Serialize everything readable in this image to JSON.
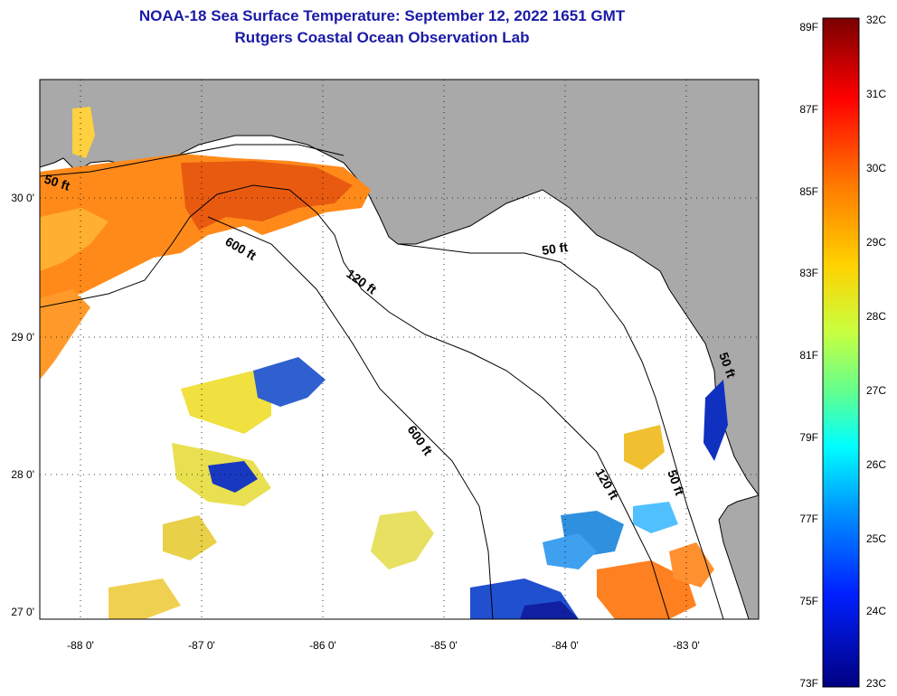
{
  "title": {
    "line1": "NOAA-18 Sea Surface Temperature:  September 12, 2022 1651 GMT",
    "line2": "Rutgers Coastal Ocean Observation Lab"
  },
  "map": {
    "lon_range": [
      -88.33,
      -82.5
    ],
    "lat_range": [
      26.97,
      30.85
    ],
    "lon_ticks": [
      "-88 0'",
      "-87 0'",
      "-86 0'",
      "-85 0'",
      "-84 0'",
      "-83 0'"
    ],
    "lat_ticks": [
      "30 0'",
      "29 0'",
      "28 0'",
      "27 0'"
    ],
    "contour_labels": [
      "50 ft",
      "600 ft",
      "120 ft",
      "50 ft",
      "600 ft",
      "120 ft",
      "50 ft",
      "50 ft"
    ],
    "colors": {
      "land": "#a9a9a9",
      "water_no_data": "#ffffff",
      "coastline": "#000000"
    }
  },
  "colorbar": {
    "fahrenheit_labels": [
      "89F",
      "87F",
      "85F",
      "83F",
      "81F",
      "79F",
      "77F",
      "75F",
      "73F"
    ],
    "celsius_labels": [
      "32C",
      "31C",
      "30C",
      "29C",
      "28C",
      "27C",
      "26C",
      "25C",
      "24C",
      "23C"
    ],
    "stops": [
      "#800000",
      "#ff0000",
      "#ff8000",
      "#ffff00",
      "#80ff80",
      "#00ffff",
      "#0080ff",
      "#0000ff",
      "#000080"
    ]
  }
}
